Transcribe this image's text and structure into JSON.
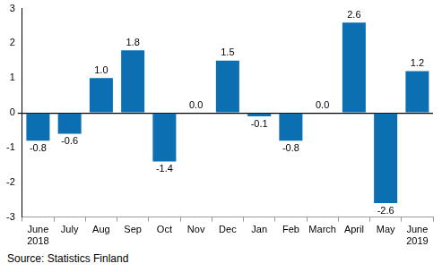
{
  "chart_data": {
    "type": "bar",
    "categories": [
      "June 2018",
      "July",
      "Aug",
      "Sep",
      "Oct",
      "Nov",
      "Dec",
      "Jan",
      "Feb",
      "March",
      "April",
      "May",
      "June 2019"
    ],
    "values": [
      -0.8,
      -0.6,
      1.0,
      1.8,
      -1.4,
      0.0,
      1.5,
      -0.1,
      -0.8,
      0.0,
      2.6,
      -2.6,
      1.2
    ],
    "value_labels": [
      "-0.8",
      "-0.6",
      "1.0",
      "1.8",
      "-1.4",
      "0.0",
      "1.5",
      "-0.1",
      "-0.8",
      "0.0",
      "2.6",
      "-2.6",
      "1.2"
    ],
    "color": "#0b6fb2",
    "ylim": [
      -3,
      3
    ],
    "yticks": [
      -3,
      -2,
      -1,
      0,
      1,
      2,
      3
    ],
    "grid": false,
    "data_labels": true,
    "source": "Source: Statistics Finland"
  }
}
